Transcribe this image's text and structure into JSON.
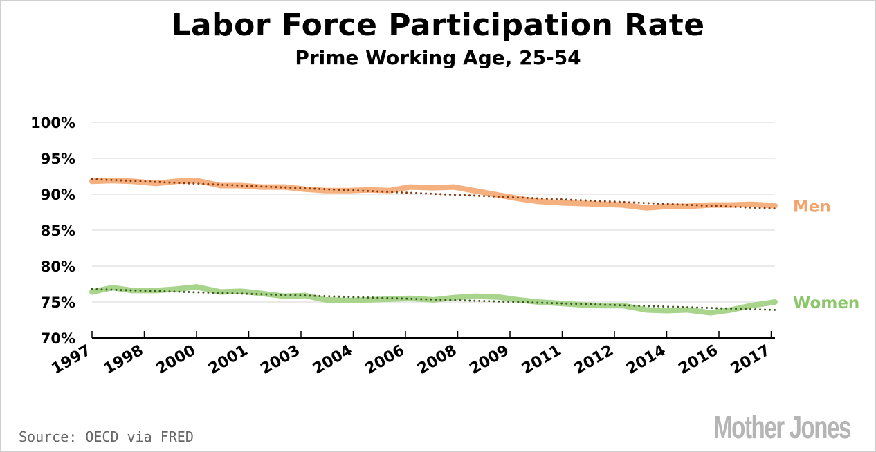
{
  "chart_data": {
    "type": "line",
    "title": "Labor Force Participation Rate",
    "subtitle": "Prime Working Age, 25-54",
    "xlabel": "",
    "ylabel": "",
    "xlim": [
      1997,
      2017.2
    ],
    "ylim": [
      70,
      100
    ],
    "y_ticks": [
      70,
      75,
      80,
      85,
      90,
      95,
      100
    ],
    "y_tick_labels": [
      "70%",
      "75%",
      "80%",
      "85%",
      "90%",
      "95%",
      "100%"
    ],
    "x_tick_labels": [
      "1997",
      "1998",
      "2000",
      "2001",
      "2003",
      "2004",
      "2006",
      "2008",
      "2009",
      "2011",
      "2012",
      "2014",
      "2016",
      "2017"
    ],
    "grid": true,
    "legend": "direct labels at right",
    "x": [
      1997.0,
      1997.6,
      1998.2,
      1998.9,
      1999.5,
      2000.1,
      2000.8,
      2001.4,
      2002.0,
      2002.7,
      2003.3,
      2003.9,
      2004.6,
      2005.2,
      2005.8,
      2006.4,
      2007.1,
      2007.7,
      2008.3,
      2009.0,
      2009.6,
      2010.2,
      2010.9,
      2011.5,
      2012.1,
      2012.7,
      2013.4,
      2014.0,
      2014.6,
      2015.3,
      2015.9,
      2016.5,
      2017.2
    ],
    "series": [
      {
        "name": "Men",
        "color": "#f5b07f",
        "label_color": "#f4a36b",
        "values": [
          91.8,
          91.9,
          91.8,
          91.5,
          91.8,
          91.9,
          91.2,
          91.2,
          91.0,
          91.0,
          90.7,
          90.5,
          90.5,
          90.6,
          90.5,
          91.0,
          90.9,
          91.0,
          90.5,
          89.9,
          89.4,
          89.0,
          88.8,
          88.7,
          88.6,
          88.5,
          88.1,
          88.3,
          88.3,
          88.5,
          88.5,
          88.6,
          88.4
        ],
        "trend": [
          92.1,
          88.0
        ],
        "trend_color": "#8b3a12"
      },
      {
        "name": "Women",
        "color": "#a8d48c",
        "label_color": "#8cc66a",
        "values": [
          76.4,
          77.0,
          76.6,
          76.6,
          76.8,
          77.1,
          76.4,
          76.5,
          76.2,
          75.8,
          75.9,
          75.3,
          75.2,
          75.3,
          75.4,
          75.5,
          75.3,
          75.6,
          75.8,
          75.7,
          75.3,
          75.0,
          74.8,
          74.6,
          74.5,
          74.5,
          73.9,
          73.8,
          73.9,
          73.5,
          73.9,
          74.5,
          75.0
        ],
        "trend": [
          76.8,
          73.9
        ],
        "trend_color": "#3d5a22"
      }
    ]
  },
  "footer": {
    "source": "Source: OECD via FRED",
    "logo": "Mother Jones"
  }
}
